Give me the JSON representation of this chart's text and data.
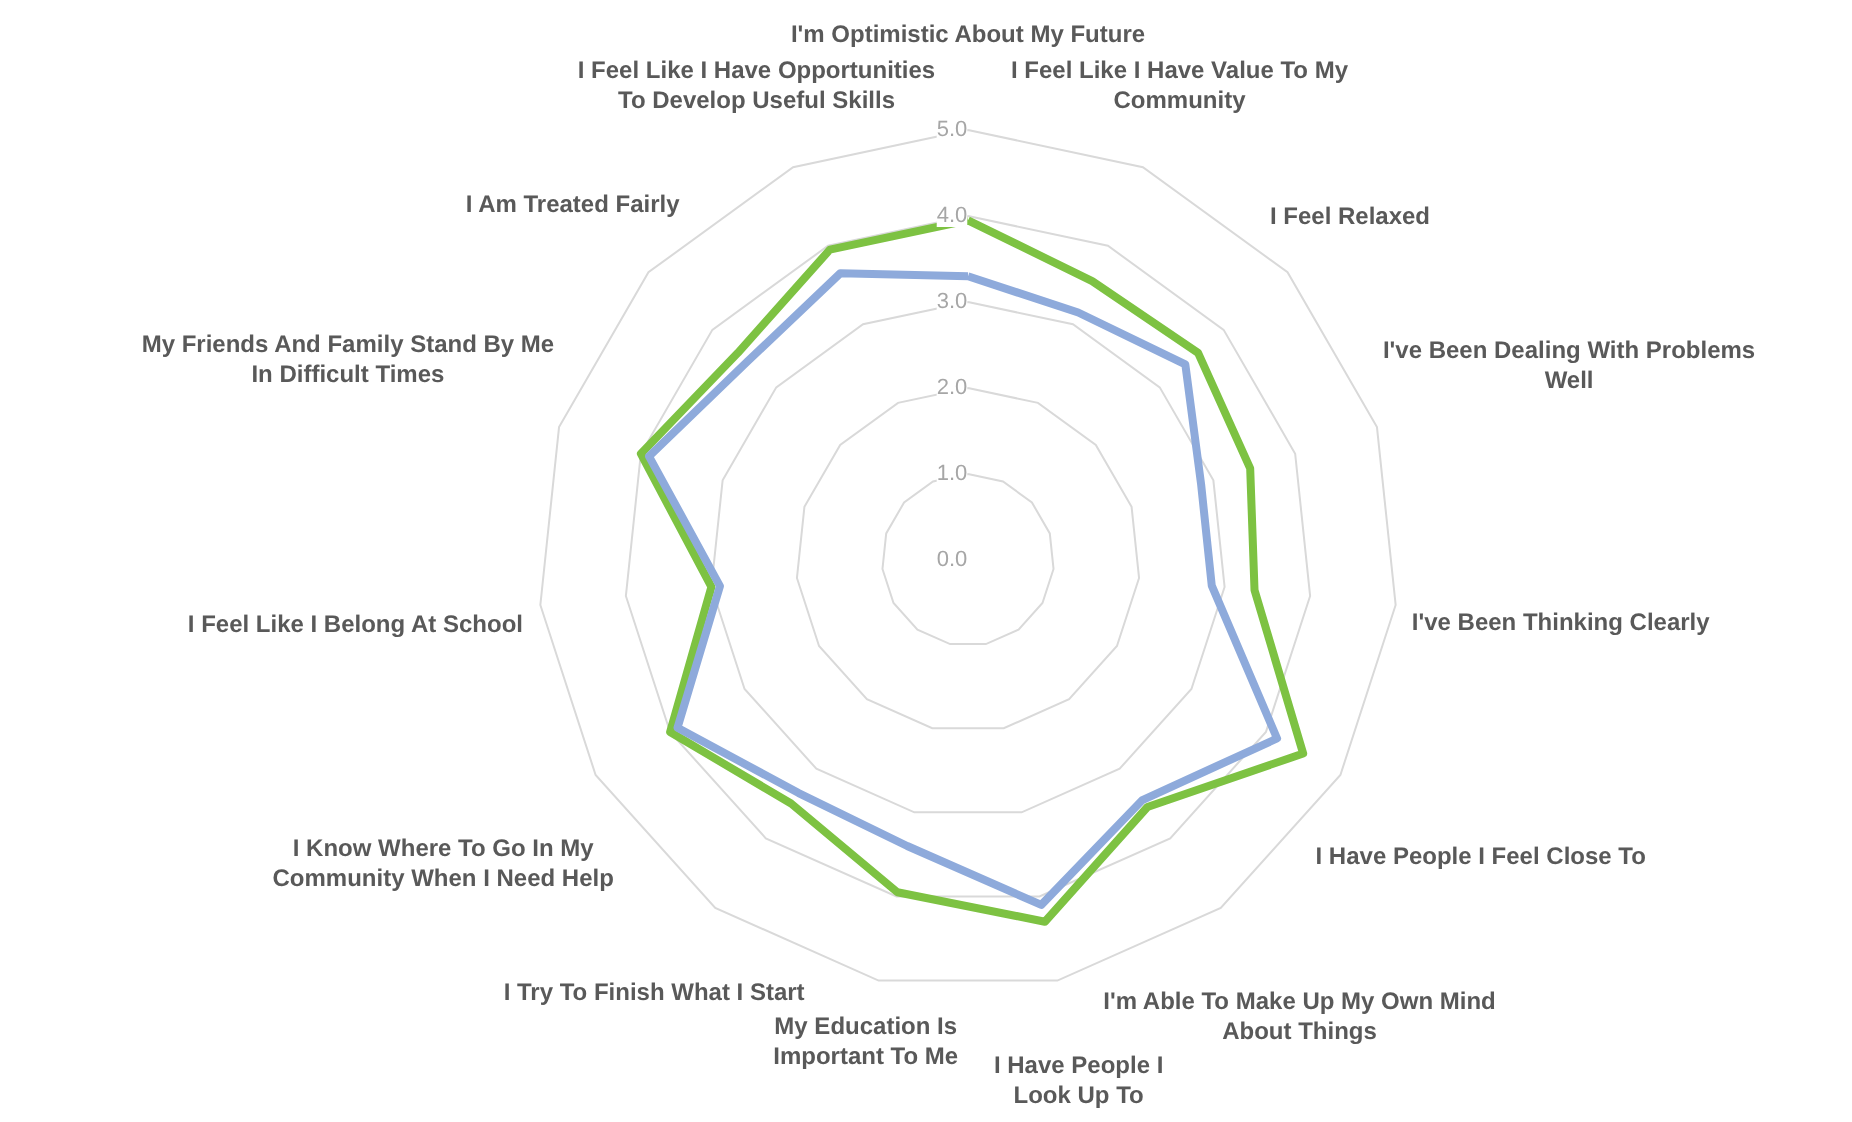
{
  "chart_data": {
    "type": "radar",
    "categories": [
      "I'm Optimistic About My Future",
      "I Feel Like I Have Value To My Community",
      "I Feel Relaxed",
      "I've Been Dealing With Problems Well",
      "I've Been Thinking Clearly",
      "I Have People I Feel Close To",
      "I'm Able To Make Up My Own Mind About Things",
      "I Have People I Look Up To",
      "My Education Is Important To Me",
      "I Try To Finish What I Start",
      "I Know Where To Go In My Community When I Need Help",
      "I Feel Like I Belong At School",
      "My Friends And Family Stand By Me In Difficult Times",
      "I Am Treated Fairly",
      "I Feel Like I Have Opportunities To Develop Useful Skills"
    ],
    "series": [
      {
        "color": "#7dc242",
        "values": [
          3.95,
          3.55,
          3.6,
          3.45,
          3.35,
          4.5,
          3.55,
          4.3,
          3.95,
          3.5,
          4.0,
          3.0,
          4.0,
          3.6,
          3.95
        ]
      },
      {
        "color": "#8eaadb",
        "values": [
          3.3,
          3.15,
          3.4,
          2.85,
          2.85,
          4.15,
          3.45,
          4.1,
          3.4,
          3.35,
          3.9,
          2.9,
          3.9,
          3.45,
          3.65
        ]
      }
    ],
    "ylim": [
      0,
      5
    ],
    "yticks": [
      {
        "value": 0,
        "label": "0.0"
      },
      {
        "value": 1,
        "label": "1.0"
      },
      {
        "value": 2,
        "label": "2.0"
      },
      {
        "value": 3,
        "label": "3.0"
      },
      {
        "value": 4,
        "label": "4.0"
      },
      {
        "value": 5,
        "label": "5.0"
      }
    ],
    "grid": true
  }
}
